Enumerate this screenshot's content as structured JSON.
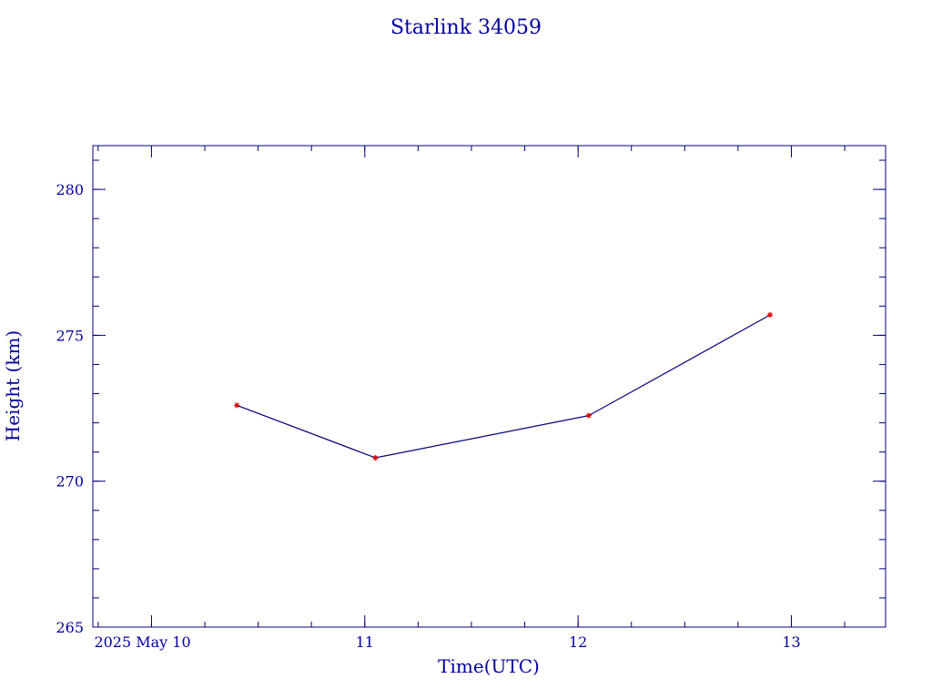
{
  "chart_data": {
    "type": "line",
    "title": "Starlink 34059",
    "xlabel": "Time(UTC)",
    "ylabel": "Height (km)",
    "x_unit": "days",
    "xlim": [
      "2025-05-09T17:24:00Z",
      "2025-05-13T10:36:00Z"
    ],
    "ylim": [
      265,
      281.5
    ],
    "x_ticks": [
      {
        "value": "2025-05-10T00:00:00Z",
        "label": "2025 May 10"
      },
      {
        "value": "2025-05-11T00:00:00Z",
        "label": "11"
      },
      {
        "value": "2025-05-12T00:00:00Z",
        "label": "12"
      },
      {
        "value": "2025-05-13T00:00:00Z",
        "label": "13"
      }
    ],
    "y_ticks": [
      265,
      270,
      275,
      280
    ],
    "y_minor_step": 1,
    "x_minor_hours": 6,
    "grid": false,
    "series": [
      {
        "color": "#00007a",
        "marker_color": "#e00000",
        "points": [
          {
            "x": "2025-05-10T09:36:00Z",
            "y": 272.6
          },
          {
            "x": "2025-05-11T01:12:00Z",
            "y": 270.8
          },
          {
            "x": "2025-05-12T01:12:00Z",
            "y": 272.25
          },
          {
            "x": "2025-05-12T21:36:00Z",
            "y": 275.7
          }
        ]
      }
    ],
    "colors": {
      "axis": "#00007a",
      "text": "#0000a0"
    }
  }
}
